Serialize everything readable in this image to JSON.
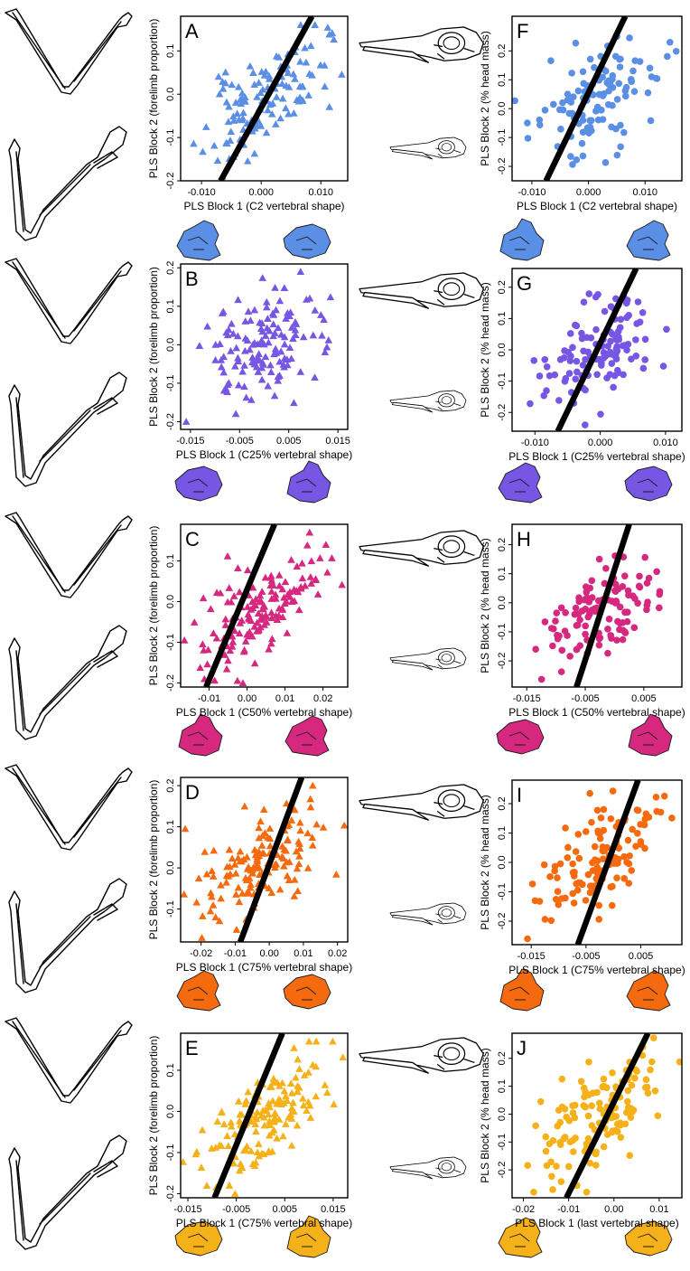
{
  "figure": {
    "colors": {
      "row1": "#5b8fe6",
      "row2": "#7656e3",
      "row3": "#d6287f",
      "row4": "#f56a0f",
      "row5": "#f5b119",
      "regression_line": "#000000"
    },
    "icons": {
      "left_illustrations": "bird-wing-skeleton-icon",
      "center_illustrations": "bird-skull-icon",
      "bottom_illustrations": "cervical-vertebra-icon"
    }
  },
  "chart_data": [
    {
      "panel": "A",
      "type": "scatter",
      "marker": "triangle",
      "color": "#5b8fe6",
      "xlabel": "PLS Block 1 (C2 vertebral shape)",
      "ylabel": "PLS Block 2 (forelimb proportion)",
      "xlim": [
        -0.0135,
        0.0145
      ],
      "ylim": [
        -0.2,
        0.18
      ],
      "xticks": [
        -0.01,
        0.0,
        0.01
      ],
      "xtick_labels": [
        "-0.010",
        "0.000",
        "0.010"
      ],
      "yticks": [
        -0.2,
        -0.1,
        0.0,
        0.1
      ],
      "ytick_labels": [
        "-0.2",
        "-0.1",
        "0.0",
        "0.1"
      ],
      "line": {
        "x": [
          -0.0068,
          0.0085
        ],
        "y": [
          -0.2,
          0.18
        ]
      },
      "points": {
        "seed": 11,
        "n": 125,
        "x_range": [
          -0.0125,
          0.0135
        ],
        "y_range": [
          -0.19,
          0.16
        ],
        "corr": 0.62
      }
    },
    {
      "panel": "B",
      "type": "scatter",
      "marker": "triangle",
      "color": "#7656e3",
      "xlabel": "PLS Block 1 (C25% vertebral shape)",
      "ylabel": "PLS Block 2 (forelimb proportion)",
      "xlim": [
        -0.017,
        0.017
      ],
      "ylim": [
        -0.22,
        0.21
      ],
      "xticks": [
        -0.015,
        -0.005,
        0.005,
        0.015
      ],
      "xtick_labels": [
        "-0.015",
        "-0.005",
        "0.005",
        "0.015"
      ],
      "yticks": [
        -0.2,
        -0.1,
        0.0,
        0.1,
        0.2
      ],
      "ytick_labels": [
        "-0.2",
        "-0.1",
        "0.0",
        "0.1",
        "0.2"
      ],
      "line": null,
      "points": {
        "seed": 23,
        "n": 135,
        "x_range": [
          -0.016,
          0.0155
        ],
        "y_range": [
          -0.2,
          0.19
        ],
        "corr": 0.35
      }
    },
    {
      "panel": "C",
      "type": "scatter",
      "marker": "triangle",
      "color": "#d6287f",
      "xlabel": "PLS Block 1 (C50% vertebral shape)",
      "ylabel": "PLS Block 2 (forelimb proportion)",
      "xlim": [
        -0.0175,
        0.0265
      ],
      "ylim": [
        -0.21,
        0.19
      ],
      "xticks": [
        -0.01,
        0.0,
        0.01,
        0.02
      ],
      "xtick_labels": [
        "-0.01",
        "0.00",
        "0.01",
        "0.02"
      ],
      "yticks": [
        -0.2,
        -0.1,
        0.0,
        0.1
      ],
      "ytick_labels": [
        "-0.2",
        "-0.1",
        "0.0",
        "0.1"
      ],
      "line": {
        "x": [
          -0.0108,
          0.0072
        ],
        "y": [
          -0.21,
          0.19
        ]
      },
      "points": {
        "seed": 37,
        "n": 150,
        "x_range": [
          -0.0165,
          0.025
        ],
        "y_range": [
          -0.2,
          0.17
        ],
        "corr": 0.6
      }
    },
    {
      "panel": "D",
      "type": "scatter",
      "marker": "triangle",
      "color": "#f56a0f",
      "xlabel": "PLS Block 1 (C75% vertebral shape)",
      "ylabel": "PLS Block 2 (forelimb proportion)",
      "xlim": [
        -0.026,
        0.023
      ],
      "ylim": [
        -0.18,
        0.22
      ],
      "xticks": [
        -0.02,
        -0.01,
        0.0,
        0.01,
        0.02
      ],
      "xtick_labels": [
        "-0.02",
        "-0.01",
        "0.00",
        "0.01",
        "0.02"
      ],
      "yticks": [
        -0.1,
        0.0,
        0.1,
        0.2
      ],
      "ytick_labels": [
        "-0.1",
        "0.0",
        "0.1",
        "0.2"
      ],
      "line": {
        "x": [
          -0.0085,
          0.0095
        ],
        "y": [
          -0.18,
          0.22
        ]
      },
      "points": {
        "seed": 41,
        "n": 140,
        "x_range": [
          -0.025,
          0.022
        ],
        "y_range": [
          -0.17,
          0.2
        ],
        "corr": 0.5
      }
    },
    {
      "panel": "E",
      "type": "scatter",
      "marker": "triangle",
      "color": "#f5b119",
      "xlabel": "PLS Block 1 (C75% vertebral shape)",
      "ylabel": "PLS Block 2 (forelimb proportion)",
      "xlim": [
        -0.0165,
        0.018
      ],
      "ylim": [
        -0.21,
        0.19
      ],
      "xticks": [
        -0.015,
        -0.005,
        0.005,
        0.015
      ],
      "xtick_labels": [
        "-0.015",
        "-0.005",
        "0.005",
        "0.015"
      ],
      "yticks": [
        -0.2,
        -0.1,
        0.0,
        0.1
      ],
      "ytick_labels": [
        "-0.2",
        "-0.1",
        "0.0",
        "0.1"
      ],
      "line": {
        "x": [
          -0.0095,
          0.0045
        ],
        "y": [
          -0.21,
          0.19
        ]
      },
      "points": {
        "seed": 53,
        "n": 150,
        "x_range": [
          -0.016,
          0.017
        ],
        "y_range": [
          -0.2,
          0.17
        ],
        "corr": 0.68
      }
    },
    {
      "panel": "F",
      "type": "scatter",
      "marker": "circle",
      "color": "#5b8fe6",
      "xlabel": "PLS Block 1 (C2 vertebral shape)",
      "ylabel": "PLS Block 2 (% head mass)",
      "xlim": [
        -0.0135,
        0.0165
      ],
      "ylim": [
        -0.25,
        0.32
      ],
      "xticks": [
        -0.01,
        0.0,
        0.01
      ],
      "xtick_labels": [
        "-0.010",
        "0.000",
        "0.010"
      ],
      "yticks": [
        -0.2,
        -0.1,
        0.0,
        0.1,
        0.2
      ],
      "ytick_labels": [
        "-0.2",
        "-0.1",
        "0.0",
        "0.1",
        "0.2"
      ],
      "line": {
        "x": [
          -0.0075,
          0.0065
        ],
        "y": [
          -0.25,
          0.32
        ]
      },
      "points": {
        "seed": 67,
        "n": 115,
        "x_range": [
          -0.013,
          0.0155
        ],
        "y_range": [
          -0.23,
          0.3
        ],
        "corr": 0.5
      }
    },
    {
      "panel": "G",
      "type": "scatter",
      "marker": "circle",
      "color": "#7656e3",
      "xlabel": "PLS Block 1 (C25% vertebral shape)",
      "ylabel": "PLS Block 2 (% head mass)",
      "xlim": [
        -0.0135,
        0.0125
      ],
      "ylim": [
        -0.26,
        0.26
      ],
      "xticks": [
        -0.01,
        0.0,
        0.01
      ],
      "xtick_labels": [
        "-0.010",
        "0.000",
        "0.010"
      ],
      "yticks": [
        -0.2,
        -0.1,
        0.0,
        0.1,
        0.2
      ],
      "ytick_labels": [
        "-0.2",
        "-0.1",
        "0.0",
        "0.1",
        "0.2"
      ],
      "line": {
        "x": [
          -0.0065,
          0.0055
        ],
        "y": [
          -0.26,
          0.26
        ]
      },
      "points": {
        "seed": 71,
        "n": 120,
        "x_range": [
          -0.0125,
          0.0115
        ],
        "y_range": [
          -0.24,
          0.24
        ],
        "corr": 0.55
      }
    },
    {
      "panel": "H",
      "type": "scatter",
      "marker": "circle",
      "color": "#d6287f",
      "xlabel": "PLS Block 1 (C50% vertebral shape)",
      "ylabel": "PLS Block 2 (% head mass)",
      "xlim": [
        -0.0175,
        0.0115
      ],
      "ylim": [
        -0.29,
        0.27
      ],
      "xticks": [
        -0.015,
        -0.005,
        0.005
      ],
      "xtick_labels": [
        "-0.015",
        "-0.005",
        "0.005"
      ],
      "yticks": [
        -0.2,
        -0.1,
        0.0,
        0.1,
        0.2
      ],
      "ytick_labels": [
        "-0.2",
        "-0.1",
        "0.0",
        "0.1",
        "0.2"
      ],
      "line": {
        "x": [
          -0.0065,
          0.0025
        ],
        "y": [
          -0.29,
          0.27
        ]
      },
      "points": {
        "seed": 83,
        "n": 115,
        "x_range": [
          -0.016,
          0.0105
        ],
        "y_range": [
          -0.27,
          0.2
        ],
        "corr": 0.45
      }
    },
    {
      "panel": "I",
      "type": "scatter",
      "marker": "circle",
      "color": "#f56a0f",
      "xlabel": "PLS Block 1 (C75% vertebral shape)",
      "ylabel": "PLS Block 2 (% head mass)",
      "xlim": [
        -0.0185,
        0.0125
      ],
      "ylim": [
        -0.28,
        0.28
      ],
      "xticks": [
        -0.015,
        -0.005,
        0.005
      ],
      "xtick_labels": [
        "-0.015",
        "-0.005",
        "0.005"
      ],
      "yticks": [
        -0.2,
        -0.1,
        0.0,
        0.1,
        0.2
      ],
      "ytick_labels": [
        "-0.2",
        "-0.1",
        "0.0",
        "0.1",
        "0.2"
      ],
      "line": {
        "x": [
          -0.0065,
          0.0045
        ],
        "y": [
          -0.28,
          0.28
        ]
      },
      "points": {
        "seed": 97,
        "n": 125,
        "x_range": [
          -0.0175,
          0.0115
        ],
        "y_range": [
          -0.26,
          0.27
        ],
        "corr": 0.5
      }
    },
    {
      "panel": "J",
      "type": "scatter",
      "marker": "circle",
      "color": "#f5b119",
      "xlabel": "PLS Block 1 (last vertebral shape)",
      "ylabel": "PLS Block 2 (% head mass)",
      "xlim": [
        -0.0225,
        0.015
      ],
      "ylim": [
        -0.3,
        0.29
      ],
      "xticks": [
        -0.02,
        -0.01,
        0.0,
        0.01
      ],
      "xtick_labels": [
        "-0.02",
        "-0.01",
        "0.00",
        "0.01"
      ],
      "yticks": [
        -0.2,
        -0.1,
        0.0,
        0.1,
        0.2
      ],
      "ytick_labels": [
        "-0.2",
        "-0.1",
        "0.0",
        "0.1",
        "0.2"
      ],
      "line": {
        "x": [
          -0.0105,
          0.0075
        ],
        "y": [
          -0.3,
          0.29
        ]
      },
      "points": {
        "seed": 101,
        "n": 130,
        "x_range": [
          -0.021,
          0.0145
        ],
        "y_range": [
          -0.28,
          0.28
        ],
        "corr": 0.55
      }
    }
  ]
}
